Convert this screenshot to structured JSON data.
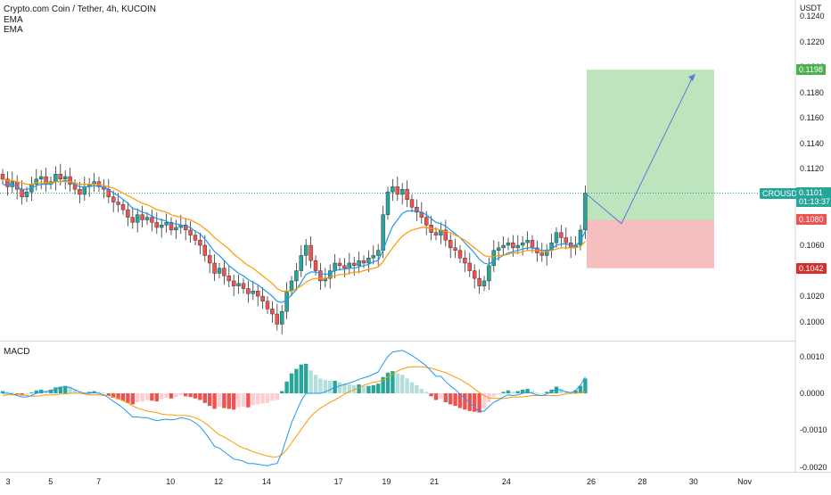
{
  "header": {
    "title": "Crypto.com Coin / Tether, 4h, KUCOIN",
    "indicators": [
      "EMA",
      "EMA"
    ],
    "currency": "USDT"
  },
  "macd_label": "MACD",
  "price_axis": {
    "ticks": [
      "0.1240",
      "0.1220",
      "0.1200",
      "0.1180",
      "0.1160",
      "0.1140",
      "0.1120",
      "0.1100",
      "0.1080",
      "0.1060",
      "0.1040",
      "0.1020",
      "0.1000"
    ]
  },
  "macd_axis": {
    "ticks": [
      "0.0010",
      "0.0000",
      "-0.0010",
      "-0.0020"
    ]
  },
  "time_axis": {
    "ticks": [
      "3",
      "5",
      "7",
      "10",
      "12",
      "14",
      "17",
      "19",
      "21",
      "24",
      "26",
      "28",
      "30",
      "Nov"
    ]
  },
  "tags": {
    "target": "0.1198",
    "symbol": "CROUSDT",
    "last_price": "0.1101",
    "countdown": "01:13:37",
    "entry": "0.1080",
    "stop": "0.1042"
  },
  "colors": {
    "up": "#26a69a",
    "down": "#ef5350",
    "ema_fast": "#2196f3",
    "ema_slow": "#ff9800",
    "profit_zone": "#b2dfb2",
    "loss_zone": "#f4b8b8",
    "projection": "#5b7be0",
    "macd_line": "#2196f3",
    "signal_line": "#ff9800"
  },
  "chart_data": {
    "type": "candlestick",
    "title": "Crypto.com Coin / Tether, 4h, KUCOIN",
    "y_unit": "USDT",
    "ylim": [
      0.0985,
      0.125
    ],
    "x_ticks": [
      "3",
      "5",
      "7",
      "10",
      "12",
      "14",
      "17",
      "19",
      "21",
      "24",
      "26",
      "28",
      "30",
      "Nov"
    ],
    "close": [
      0.1112,
      0.1106,
      0.111,
      0.1104,
      0.1098,
      0.1102,
      0.1108,
      0.1112,
      0.1114,
      0.1108,
      0.111,
      0.1116,
      0.1112,
      0.1114,
      0.1108,
      0.1104,
      0.11,
      0.1106,
      0.1108,
      0.111,
      0.1106,
      0.1104,
      0.1098,
      0.1094,
      0.1092,
      0.1088,
      0.1082,
      0.1078,
      0.1084,
      0.108,
      0.1082,
      0.1078,
      0.1074,
      0.1076,
      0.1078,
      0.1072,
      0.1074,
      0.1076,
      0.1072,
      0.1068,
      0.1064,
      0.106,
      0.1052,
      0.1046,
      0.1038,
      0.1042,
      0.1036,
      0.1032,
      0.1028,
      0.103,
      0.1026,
      0.1022,
      0.1024,
      0.102,
      0.1016,
      0.101,
      0.1006,
      0.0998,
      0.1008,
      0.1024,
      0.1032,
      0.104,
      0.1052,
      0.106,
      0.1048,
      0.104,
      0.1032,
      0.1034,
      0.104,
      0.1046,
      0.1044,
      0.1042,
      0.1046,
      0.1044,
      0.1048,
      0.1046,
      0.105,
      0.1052,
      0.1056,
      0.1084,
      0.1102,
      0.1106,
      0.11,
      0.1104,
      0.1096,
      0.109,
      0.1086,
      0.1082,
      0.1076,
      0.107,
      0.1068,
      0.1072,
      0.1064,
      0.1058,
      0.1056,
      0.105,
      0.1046,
      0.104,
      0.1034,
      0.1028,
      0.1032,
      0.1044,
      0.1056,
      0.1058,
      0.106,
      0.1062,
      0.1058,
      0.106,
      0.1062,
      0.1064,
      0.1058,
      0.1054,
      0.1052,
      0.1056,
      0.1062,
      0.107,
      0.1066,
      0.1062,
      0.1058,
      0.106,
      0.1072,
      0.1101
    ],
    "series": [
      {
        "name": "EMA",
        "type": "line",
        "values": [
          0.1108,
          0.1107,
          0.1108,
          0.1106,
          0.1104,
          0.1104,
          0.1105,
          0.1107,
          0.1108,
          0.1108,
          0.1108,
          0.111,
          0.111,
          0.1111,
          0.111,
          0.1108,
          0.1106,
          0.1106,
          0.1106,
          0.1107,
          0.1106,
          0.1106,
          0.1104,
          0.1101,
          0.1099,
          0.1096,
          0.1093,
          0.1089,
          0.1088,
          0.1086,
          0.1085,
          0.1083,
          0.1081,
          0.108,
          0.1079,
          0.1077,
          0.1077,
          0.1076,
          0.1075,
          0.1074,
          0.1071,
          0.1069,
          0.1065,
          0.106,
          0.1055,
          0.1052,
          0.1048,
          0.1044,
          0.1041,
          0.1038,
          0.1036,
          0.1033,
          0.1031,
          0.1029,
          0.1026,
          0.1023,
          0.102,
          0.1016,
          0.1015,
          0.1017,
          0.1021,
          0.1025,
          0.1031,
          0.1037,
          0.1039,
          0.1039,
          0.1038,
          0.1037,
          0.1038,
          0.104,
          0.1041,
          0.1041,
          0.1042,
          0.1042,
          0.1043,
          0.1044,
          0.1045,
          0.1047,
          0.1048,
          0.1056,
          0.1066,
          0.1075,
          0.108,
          0.1085,
          0.1087,
          0.1087,
          0.1087,
          0.1086,
          0.1084,
          0.1081,
          0.1078,
          0.1077,
          0.1075,
          0.1072,
          0.1069,
          0.1066,
          0.1062,
          0.1058,
          0.1054,
          0.1049,
          0.1046,
          0.1045,
          0.1048,
          0.105,
          0.1052,
          0.1054,
          0.1055,
          0.1056,
          0.1057,
          0.1058,
          0.1058,
          0.1057,
          0.1056,
          0.1056,
          0.1057,
          0.106,
          0.1061,
          0.1061,
          0.106,
          0.106,
          0.1063,
          0.1071
        ]
      },
      {
        "name": "EMA",
        "type": "line",
        "values": [
          0.1112,
          0.1111,
          0.1111,
          0.111,
          0.1109,
          0.1108,
          0.1108,
          0.1109,
          0.1109,
          0.1109,
          0.1109,
          0.111,
          0.111,
          0.111,
          0.111,
          0.1109,
          0.1108,
          0.1108,
          0.1108,
          0.1108,
          0.1108,
          0.1107,
          0.1106,
          0.1105,
          0.1103,
          0.1101,
          0.1099,
          0.1097,
          0.1095,
          0.1093,
          0.1092,
          0.109,
          0.1088,
          0.1087,
          0.1086,
          0.1084,
          0.1083,
          0.1082,
          0.1081,
          0.108,
          0.1078,
          0.1076,
          0.1073,
          0.107,
          0.1066,
          0.1063,
          0.106,
          0.1057,
          0.1053,
          0.105,
          0.1047,
          0.1044,
          0.1042,
          0.1039,
          0.1036,
          0.1033,
          0.103,
          0.1026,
          0.1024,
          0.1024,
          0.1024,
          0.1026,
          0.1028,
          0.1031,
          0.1033,
          0.1034,
          0.1034,
          0.1034,
          0.1035,
          0.1036,
          0.1037,
          0.1037,
          0.1038,
          0.1039,
          0.1039,
          0.104,
          0.1041,
          0.1042,
          0.1043,
          0.1047,
          0.1053,
          0.1058,
          0.1063,
          0.1067,
          0.107,
          0.1072,
          0.1073,
          0.1074,
          0.1074,
          0.1073,
          0.1073,
          0.1072,
          0.1071,
          0.107,
          0.1068,
          0.1066,
          0.1064,
          0.1061,
          0.1058,
          0.1055,
          0.1052,
          0.1051,
          0.1051,
          0.1052,
          0.1052,
          0.1053,
          0.1054,
          0.1054,
          0.1055,
          0.1056,
          0.1056,
          0.1056,
          0.1055,
          0.1055,
          0.1056,
          0.1057,
          0.1058,
          0.1058,
          0.1058,
          0.1058,
          0.1059,
          0.1063
        ]
      }
    ],
    "position": {
      "target": 0.1198,
      "entry": 0.108,
      "stop": 0.1042
    },
    "macd": {
      "ylim": [
        -0.0021,
        0.0014
      ],
      "histogram": [
        6e-05,
        4e-05,
        2e-05,
        -4e-05,
        -6e-05,
        -4e-05,
        2e-05,
        8e-05,
        0.0001,
        8e-05,
        0.0001,
        0.00016,
        0.00018,
        0.0002,
        0.00016,
        0.0001,
        4e-05,
        2e-05,
        4e-05,
        6e-05,
        4e-05,
        2e-05,
        -6e-05,
        -0.00012,
        -0.00016,
        -0.0002,
        -0.00026,
        -0.0003,
        -0.00024,
        -0.00022,
        -0.00018,
        -0.0002,
        -0.00022,
        -0.00016,
        -0.00012,
        -0.00014,
        -0.0001,
        -6e-05,
        -8e-05,
        -0.0001,
        -0.00014,
        -0.00018,
        -0.00026,
        -0.00034,
        -0.00042,
        -0.00036,
        -0.0004,
        -0.00042,
        -0.00044,
        -0.00038,
        -0.00036,
        -0.00038,
        -0.00032,
        -0.0003,
        -0.00028,
        -0.00026,
        -0.0002,
        -0.00018,
        6e-05,
        0.00032,
        0.00054,
        0.00066,
        0.00078,
        0.0008,
        0.00062,
        0.0005,
        0.0004,
        0.00036,
        0.00034,
        0.00034,
        0.0003,
        0.00026,
        0.00024,
        0.00022,
        0.00024,
        0.0002,
        0.0002,
        0.00022,
        0.00026,
        0.00044,
        0.00056,
        0.0006,
        0.00054,
        0.0005,
        0.0004,
        0.0003,
        0.00022,
        0.00012,
        4e-05,
        -8e-05,
        -0.00018,
        -0.00014,
        -0.00024,
        -0.0003,
        -0.00034,
        -0.0004,
        -0.00044,
        -0.00048,
        -0.0005,
        -0.00052,
        -0.00042,
        -0.00024,
        -0.0001,
        -4e-05,
        4e-05,
        8e-05,
        4e-05,
        6e-05,
        0.0001,
        0.00012,
        6e-05,
        2e-05,
        0.0,
        4e-05,
        0.0001,
        0.00018,
        0.00012,
        6e-05,
        2e-05,
        8e-05,
        0.0002,
        0.0004
      ],
      "macd_line": [
        0.0,
        0.0,
        -2e-05,
        -6e-05,
        -0.0001,
        -0.0001,
        -6e-05,
        0.0,
        4e-05,
        4e-05,
        6e-05,
        0.00012,
        0.00016,
        0.00018,
        0.00016,
        0.0001,
        4e-05,
        0.0,
        0.0,
        2e-05,
        0.0,
        -4e-05,
        -0.00012,
        -0.00022,
        -0.0003,
        -0.0004,
        -0.00052,
        -0.00064,
        -0.00064,
        -0.00066,
        -0.00066,
        -0.0007,
        -0.00074,
        -0.00072,
        -0.0007,
        -0.00072,
        -0.0007,
        -0.00066,
        -0.00068,
        -0.00072,
        -0.0008,
        -0.0009,
        -0.00106,
        -0.00124,
        -0.00144,
        -0.00148,
        -0.00158,
        -0.00168,
        -0.00178,
        -0.0018,
        -0.00184,
        -0.0019,
        -0.0019,
        -0.00192,
        -0.00194,
        -0.00196,
        -0.00192,
        -0.0019,
        -0.0016,
        -0.0012,
        -0.0008,
        -0.0005,
        -0.0002,
        0.0,
        0.0,
        0.0,
        0.0,
        4e-05,
        0.0001,
        0.00016,
        0.0002,
        0.00024,
        0.00028,
        0.00032,
        0.00038,
        0.00042,
        0.00046,
        0.00052,
        0.00058,
        0.0008,
        0.001,
        0.00112,
        0.00114,
        0.00116,
        0.0011,
        0.00102,
        0.00094,
        0.00084,
        0.00074,
        0.0006,
        0.00046,
        0.00046,
        0.00032,
        0.0002,
        0.0001,
        -2e-05,
        -0.00014,
        -0.00026,
        -0.00038,
        -0.0005,
        -0.00048,
        -0.00036,
        -0.00024,
        -0.00018,
        -0.0001,
        -4e-05,
        -6e-05,
        -4e-05,
        0.0,
        4e-05,
        0.0,
        -4e-05,
        -6e-05,
        -2e-05,
        4e-05,
        0.00012,
        8e-05,
        4e-05,
        2e-05,
        8e-05,
        0.00022,
        0.00044
      ],
      "signal_line": [
        -6e-05,
        -4e-05,
        -4e-05,
        -2e-05,
        -4e-05,
        -6e-05,
        -8e-05,
        -8e-05,
        -6e-05,
        -4e-05,
        -4e-05,
        -4e-05,
        -2e-05,
        -2e-05,
        0.0,
        0.0,
        0.0,
        -2e-05,
        -4e-05,
        -4e-05,
        -4e-05,
        -6e-05,
        -6e-05,
        -0.0001,
        -0.00014,
        -0.0002,
        -0.00026,
        -0.00034,
        -0.0004,
        -0.00044,
        -0.00048,
        -0.0005,
        -0.00052,
        -0.00056,
        -0.00058,
        -0.00058,
        -0.0006,
        -0.0006,
        -0.0006,
        -0.00062,
        -0.00066,
        -0.00072,
        -0.0008,
        -0.0009,
        -0.00102,
        -0.00112,
        -0.00118,
        -0.00126,
        -0.00134,
        -0.00142,
        -0.00148,
        -0.00152,
        -0.00158,
        -0.00162,
        -0.00166,
        -0.0017,
        -0.00172,
        -0.00172,
        -0.00166,
        -0.00152,
        -0.00134,
        -0.00116,
        -0.00098,
        -0.0008,
        -0.00062,
        -0.0005,
        -0.0004,
        -0.00032,
        -0.00024,
        -0.00018,
        -0.0001,
        -2e-05,
        4e-05,
        0.0001,
        0.00014,
        0.00022,
        0.00026,
        0.0003,
        0.00032,
        0.00036,
        0.00044,
        0.00052,
        0.0006,
        0.00066,
        0.0007,
        0.00072,
        0.00072,
        0.00072,
        0.0007,
        0.00068,
        0.00064,
        0.0006,
        0.00056,
        0.0005,
        0.00044,
        0.00038,
        0.0003,
        0.00022,
        0.00012,
        2e-05,
        -6e-05,
        -0.00012,
        -0.00014,
        -0.00014,
        -0.00014,
        -0.00012,
        -0.0001,
        -0.0001,
        -0.0001,
        -8e-05,
        -6e-05,
        -6e-05,
        -6e-05,
        -6e-05,
        -6e-05,
        -6e-05,
        -4e-05,
        -2e-05,
        0.0,
        0.0,
        2e-05,
        4e-05
      ]
    }
  }
}
